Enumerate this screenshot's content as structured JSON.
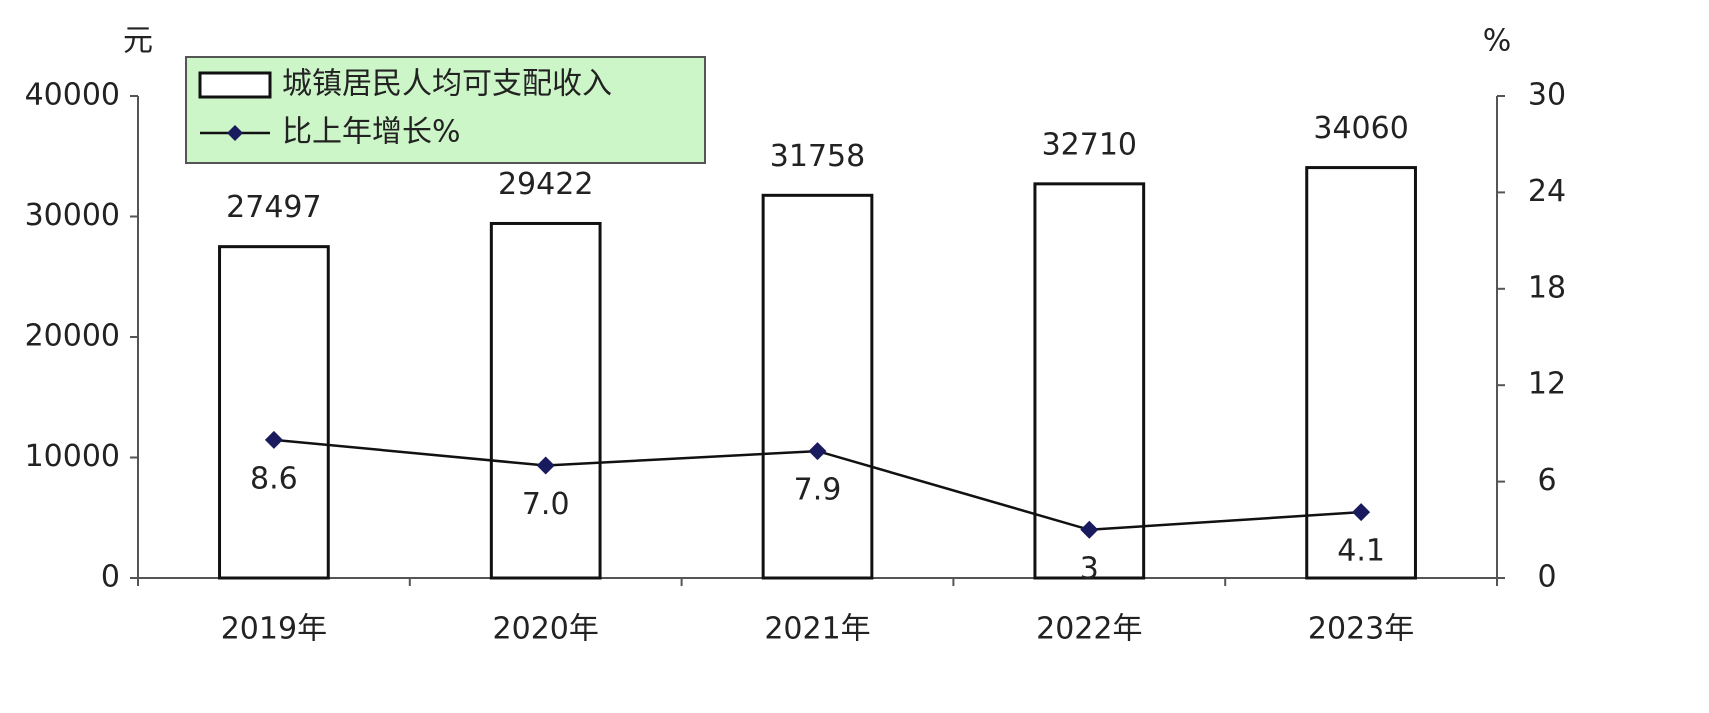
{
  "chart_data": {
    "type": "bar_line",
    "y_unit": "元",
    "y2_unit": "%",
    "categories": [
      "2019年",
      "2020年",
      "2021年",
      "2022年",
      "2023年"
    ],
    "series": [
      {
        "name": "城镇居民人均可支配收入",
        "type": "bar",
        "color": "#ffffff",
        "values": [
          27497,
          29422,
          31758,
          32710,
          34060
        ]
      },
      {
        "name": "比上年增长%",
        "type": "line",
        "axis": "y2",
        "color": "#1a1a5e",
        "values": [
          8.6,
          7.0,
          7.9,
          3,
          4.1
        ],
        "value_labels": [
          "8.6",
          "7.0",
          "7.9",
          "3",
          "4.1"
        ]
      }
    ],
    "ylim": [
      0,
      40000
    ],
    "yticks": [
      0,
      10000,
      20000,
      30000,
      40000
    ],
    "y2lim": [
      0,
      30
    ],
    "y2ticks": [
      0,
      6,
      12,
      18,
      24,
      30
    ],
    "legend": "top-left"
  }
}
